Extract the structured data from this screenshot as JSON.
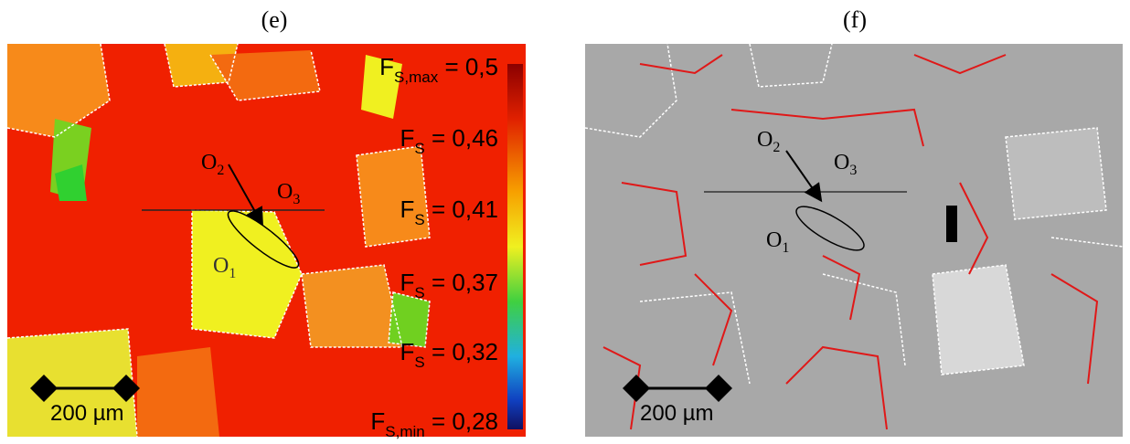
{
  "panels": [
    {
      "label": "(e)",
      "points": [
        {
          "name": "O",
          "sub": "2"
        },
        {
          "name": "O",
          "sub": "3"
        },
        {
          "name": "O",
          "sub": "1"
        }
      ],
      "scale_bar": "200 µm",
      "colorbar_labels": [
        {
          "name": "F",
          "sub": "S,max",
          "text": " = 0,5"
        },
        {
          "name": "F",
          "sub": "S",
          "text": " = 0,46"
        },
        {
          "name": "F",
          "sub": "S",
          "text": " = 0,41"
        },
        {
          "name": "F",
          "sub": "S",
          "text": " = 0,37"
        },
        {
          "name": "F",
          "sub": "S",
          "text": " = 0,32"
        },
        {
          "name": "F",
          "sub": "S,min",
          "text": " = 0,28"
        }
      ]
    },
    {
      "label": "(f)",
      "points": [
        {
          "name": "O",
          "sub": "2"
        },
        {
          "name": "O",
          "sub": "3"
        },
        {
          "name": "O",
          "sub": "1"
        }
      ],
      "scale_bar": "200 µm"
    }
  ]
}
